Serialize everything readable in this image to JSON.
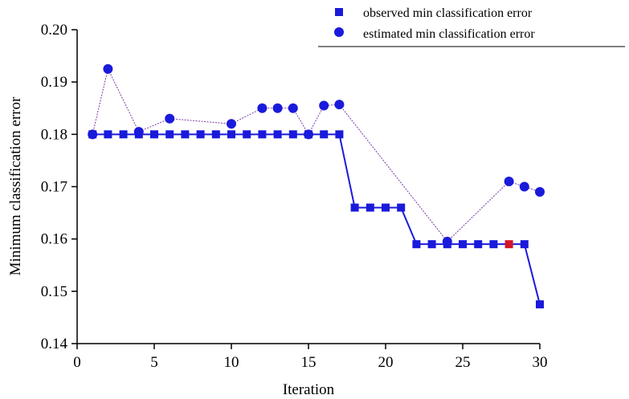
{
  "chart_data": {
    "type": "line",
    "xlabel": "Iteration",
    "ylabel": "Minimum classification error",
    "xlim": [
      0,
      30
    ],
    "ylim": [
      0.14,
      0.2
    ],
    "x_ticks": [
      "0",
      "5",
      "10",
      "15",
      "20",
      "25",
      "30"
    ],
    "y_ticks": [
      "0.14",
      "0.15",
      "0.16",
      "0.17",
      "0.18",
      "0.19",
      "0.20"
    ],
    "legend_position": "top-right",
    "grid": false,
    "colors": {
      "observed": "#1a1adb",
      "estimated": "#1a1adb",
      "highlight": "#d4142a"
    },
    "highlight_point": {
      "x": 28,
      "y": 0.159
    },
    "series": [
      {
        "name": "observed min classification error",
        "marker": "square",
        "x": [
          1,
          2,
          3,
          4,
          5,
          6,
          7,
          8,
          9,
          10,
          11,
          12,
          13,
          14,
          15,
          16,
          17,
          18,
          19,
          20,
          21,
          22,
          23,
          24,
          25,
          26,
          27,
          28,
          29,
          30
        ],
        "y": [
          0.18,
          0.18,
          0.18,
          0.18,
          0.18,
          0.18,
          0.18,
          0.18,
          0.18,
          0.18,
          0.18,
          0.18,
          0.18,
          0.18,
          0.18,
          0.18,
          0.18,
          0.166,
          0.166,
          0.166,
          0.166,
          0.159,
          0.159,
          0.159,
          0.159,
          0.159,
          0.159,
          0.159,
          0.159,
          0.1475
        ]
      },
      {
        "name": "estimated min classification error",
        "marker": "circle",
        "x": [
          1,
          2,
          4,
          6,
          10,
          12,
          13,
          14,
          15,
          16,
          17,
          24,
          28,
          29,
          30
        ],
        "y": [
          0.18,
          0.1925,
          0.1805,
          0.183,
          0.182,
          0.185,
          0.185,
          0.185,
          0.18,
          0.1855,
          0.1857,
          0.1595,
          0.171,
          0.17,
          0.169
        ]
      }
    ]
  }
}
